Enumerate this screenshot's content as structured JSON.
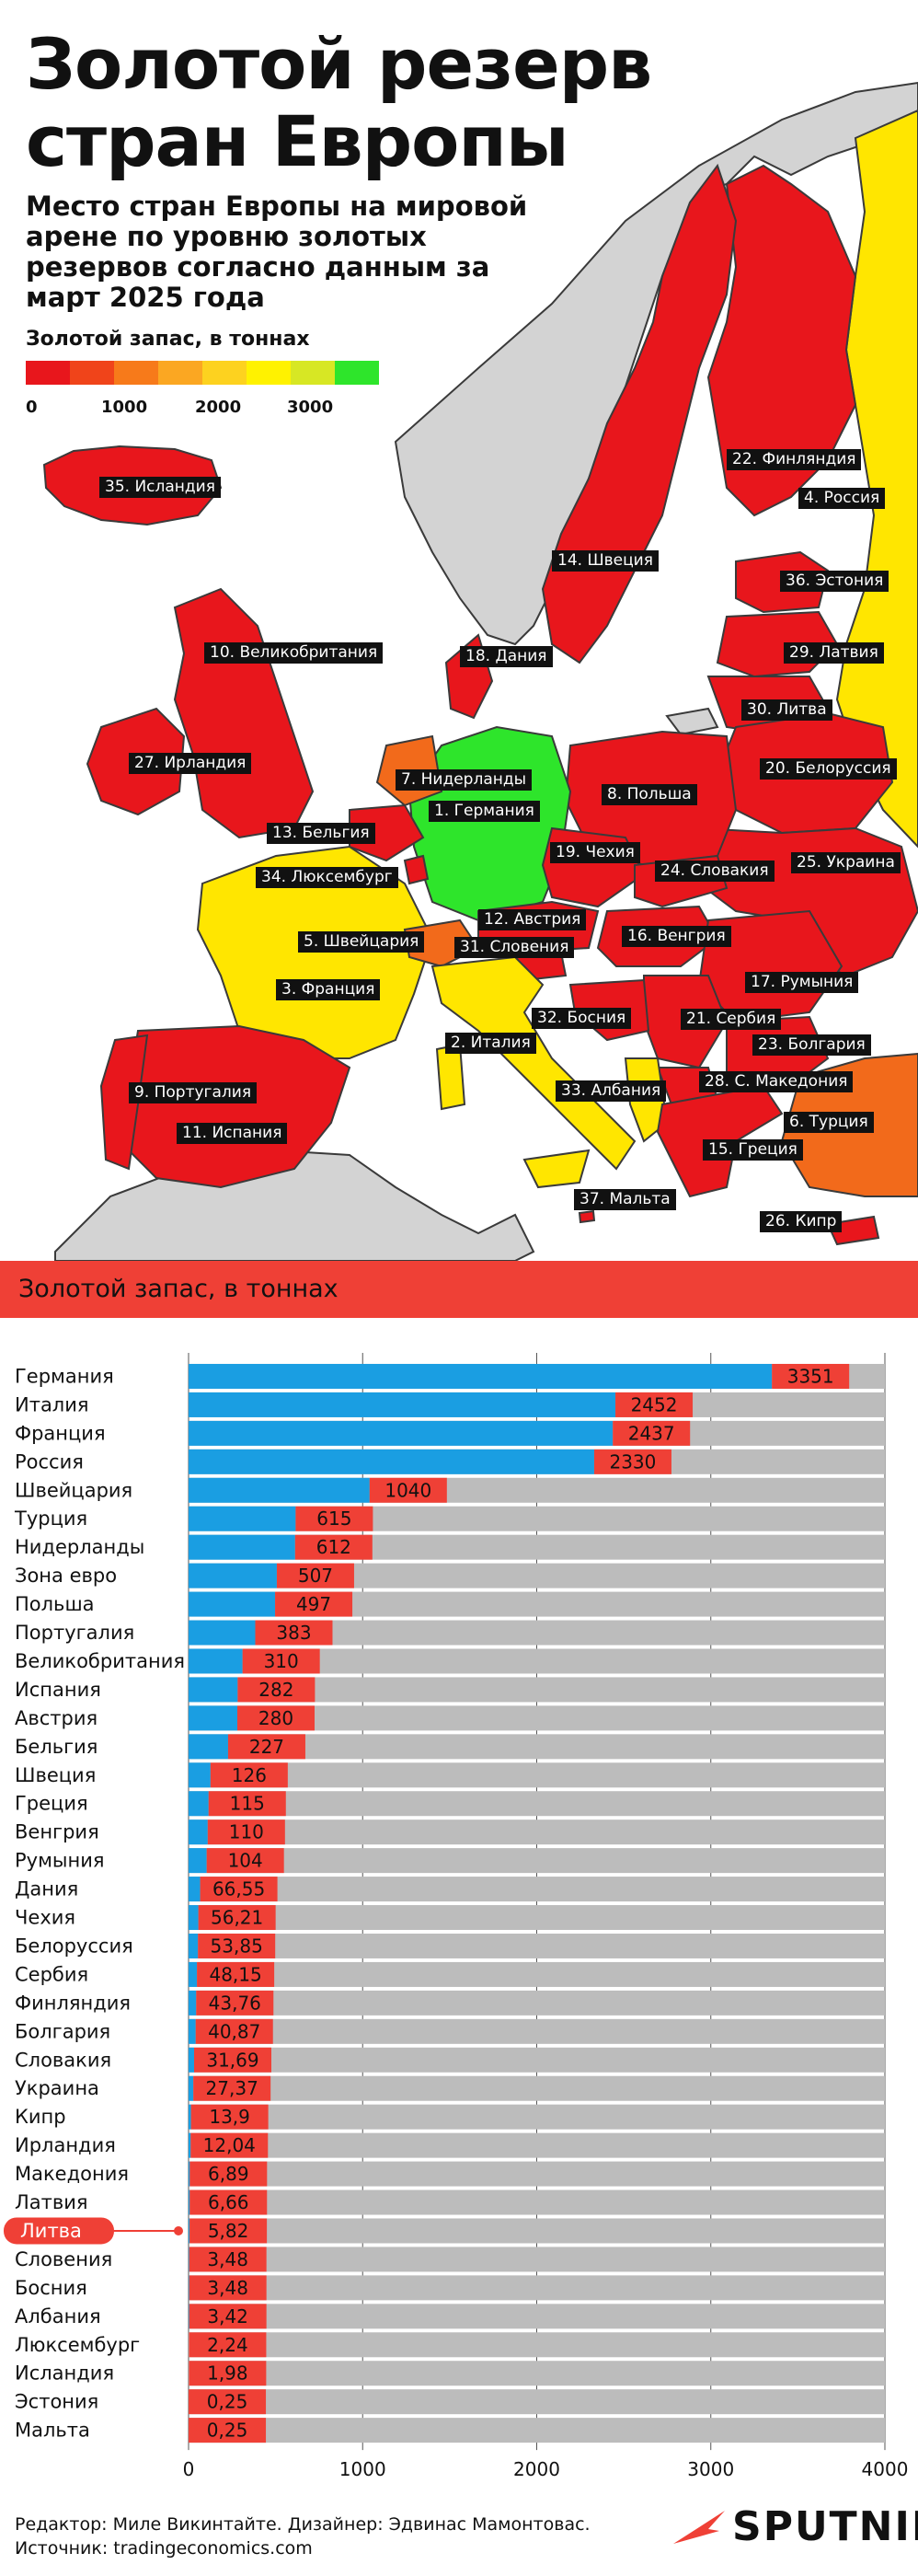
{
  "title_lines": [
    "Золотой резерв",
    "стран Европы"
  ],
  "subtitle": "Место стран Европы на мировой арене по уровню золотых резервов согласно данным за март 2025 года",
  "scale": {
    "title": "Золотой запас, в тоннах",
    "colors": [
      "#e8161c",
      "#f0441a",
      "#f77a1a",
      "#fba722",
      "#fdd21f",
      "#fff200",
      "#d7e724",
      "#2ee52b"
    ],
    "ticks": [
      "0",
      "1000",
      "2000",
      "3000"
    ]
  },
  "map_colors": {
    "sea": "#ffffff",
    "land_gray": "#d3d3d3",
    "red": "#e8161c",
    "orange": "#f26a1b",
    "yellow": "#ffe600",
    "green": "#2ee52b",
    "border": "#3a3a3a"
  },
  "map_labels": [
    "35. Исландия",
    "22. Финляндия",
    "4. Россия",
    "14. Швеция",
    "36. Эстония",
    "10. Великобритания",
    "18. Дания",
    "29. Латвия",
    "30. Литва",
    "27. Ирландия",
    "20. Белоруссия",
    "7. Нидерланды",
    "1. Германия",
    "8. Польша",
    "13. Бельгия",
    "19. Чехия",
    "24. Словакия",
    "25. Украина",
    "34. Люксембург",
    "12. Австрия",
    "5. Швейцария",
    "31. Словения",
    "16. Венгрия",
    "17. Румыния",
    "3. Франция",
    "32. Босния",
    "21. Сербия",
    "23. Болгария",
    "2. Италия",
    "33. Албания",
    "28. С. Македония",
    "9. Португалия",
    "6. Турция",
    "11. Испания",
    "15. Греция",
    "37. Мальта",
    "26. Кипр"
  ],
  "band_title": "Золотой запас, в тоннах",
  "chart_data": {
    "type": "bar",
    "orientation": "horizontal",
    "title": "Золотой запас, в тоннах",
    "xlim": [
      0,
      4000
    ],
    "xticks": [
      "0",
      "1000",
      "2000",
      "3000",
      "4000"
    ],
    "grid": true,
    "highlight": "Литва",
    "colors": {
      "bar": "#1a9ee2",
      "label_box": "#ef4036",
      "track": "#bcbcbc",
      "highlight_pill": "#ef4036"
    },
    "categories": [
      "Германия",
      "Италия",
      "Франция",
      "Россия",
      "Швейцария",
      "Турция",
      "Нидерланды",
      "Зона евро",
      "Польша",
      "Португалия",
      "Великобритания",
      "Испания",
      "Австрия",
      "Бельгия",
      "Швеция",
      "Греция",
      "Венгрия",
      "Румыния",
      "Дания",
      "Чехия",
      "Белоруссия",
      "Сербия",
      "Финляндия",
      "Болгария",
      "Словакия",
      "Украина",
      "Кипр",
      "Ирландия",
      "Македония",
      "Латвия",
      "Литва",
      "Словения",
      "Босния",
      "Албания",
      "Люксембург",
      "Исландия",
      "Эстония",
      "Мальта"
    ],
    "values": [
      3351,
      2452,
      2437,
      2330,
      1040,
      615,
      612,
      507,
      497,
      383,
      310,
      282,
      280,
      227,
      126,
      115,
      110,
      104,
      66.55,
      56.21,
      53.85,
      48.15,
      43.76,
      40.87,
      31.69,
      27.37,
      13.9,
      12.04,
      6.89,
      6.66,
      5.82,
      3.48,
      3.48,
      3.42,
      2.24,
      1.98,
      0.25,
      0.25
    ],
    "value_labels": [
      "3351",
      "2452",
      "2437",
      "2330",
      "1040",
      "615",
      "612",
      "507",
      "497",
      "383",
      "310",
      "282",
      "280",
      "227",
      "126",
      "115",
      "110",
      "104",
      "66,55",
      "56,21",
      "53,85",
      "48,15",
      "43,76",
      "40,87",
      "31,69",
      "27,37",
      "13,9",
      "12,04",
      "6,89",
      "6,66",
      "5,82",
      "3,48",
      "3,48",
      "3,42",
      "2,24",
      "1,98",
      "0,25",
      "0,25"
    ]
  },
  "footer": {
    "line1": "Редактор: Миле Викинтайте.  Дизайнер: Эдвинас Мамонтовас.",
    "line2": "Источник: tradingeconomics.com"
  },
  "logo": {
    "text": "SPUTNIK",
    "color": "#ef4036"
  }
}
